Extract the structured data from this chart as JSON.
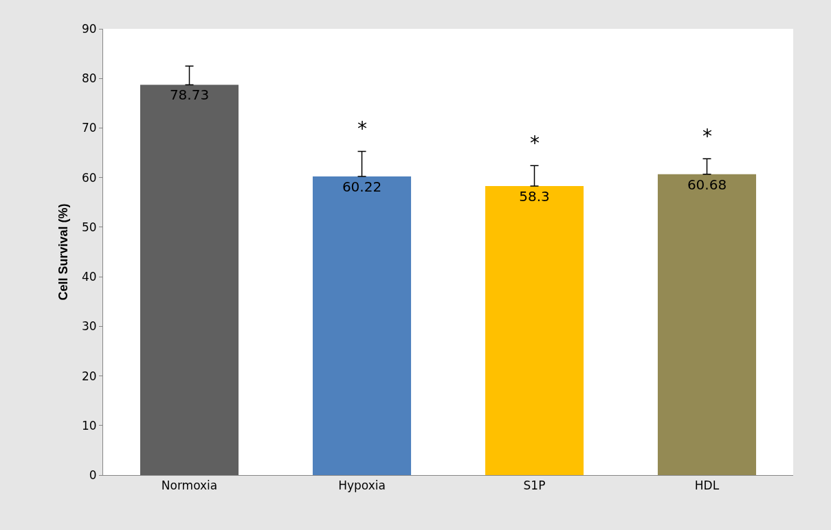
{
  "chart_data": {
    "type": "bar",
    "ylabel": "Cell Survival (%)",
    "categories": [
      "Normoxia",
      "Hypoxia",
      "S1P",
      "HDL"
    ],
    "values": [
      78.73,
      60.22,
      58.3,
      60.68
    ],
    "colors": [
      "#606060",
      "#4f81bd",
      "#ffc000",
      "#948a54"
    ],
    "errors": [
      [
        78.73,
        82.5
      ],
      [
        60.22,
        65.3
      ],
      [
        58.3,
        62.4
      ],
      [
        60.68,
        63.8
      ]
    ],
    "data_labels": true,
    "ylim": [
      0,
      90
    ],
    "yticks": [
      0,
      10,
      20,
      30,
      40,
      50,
      60,
      70,
      80,
      90
    ],
    "annotations": [
      {
        "text": "*",
        "x": "Hypoxia",
        "y": 65.3
      },
      {
        "text": "*",
        "x": "S1P",
        "y": 62.4
      },
      {
        "text": "*",
        "x": "HDL",
        "y": 63.8
      }
    ]
  }
}
